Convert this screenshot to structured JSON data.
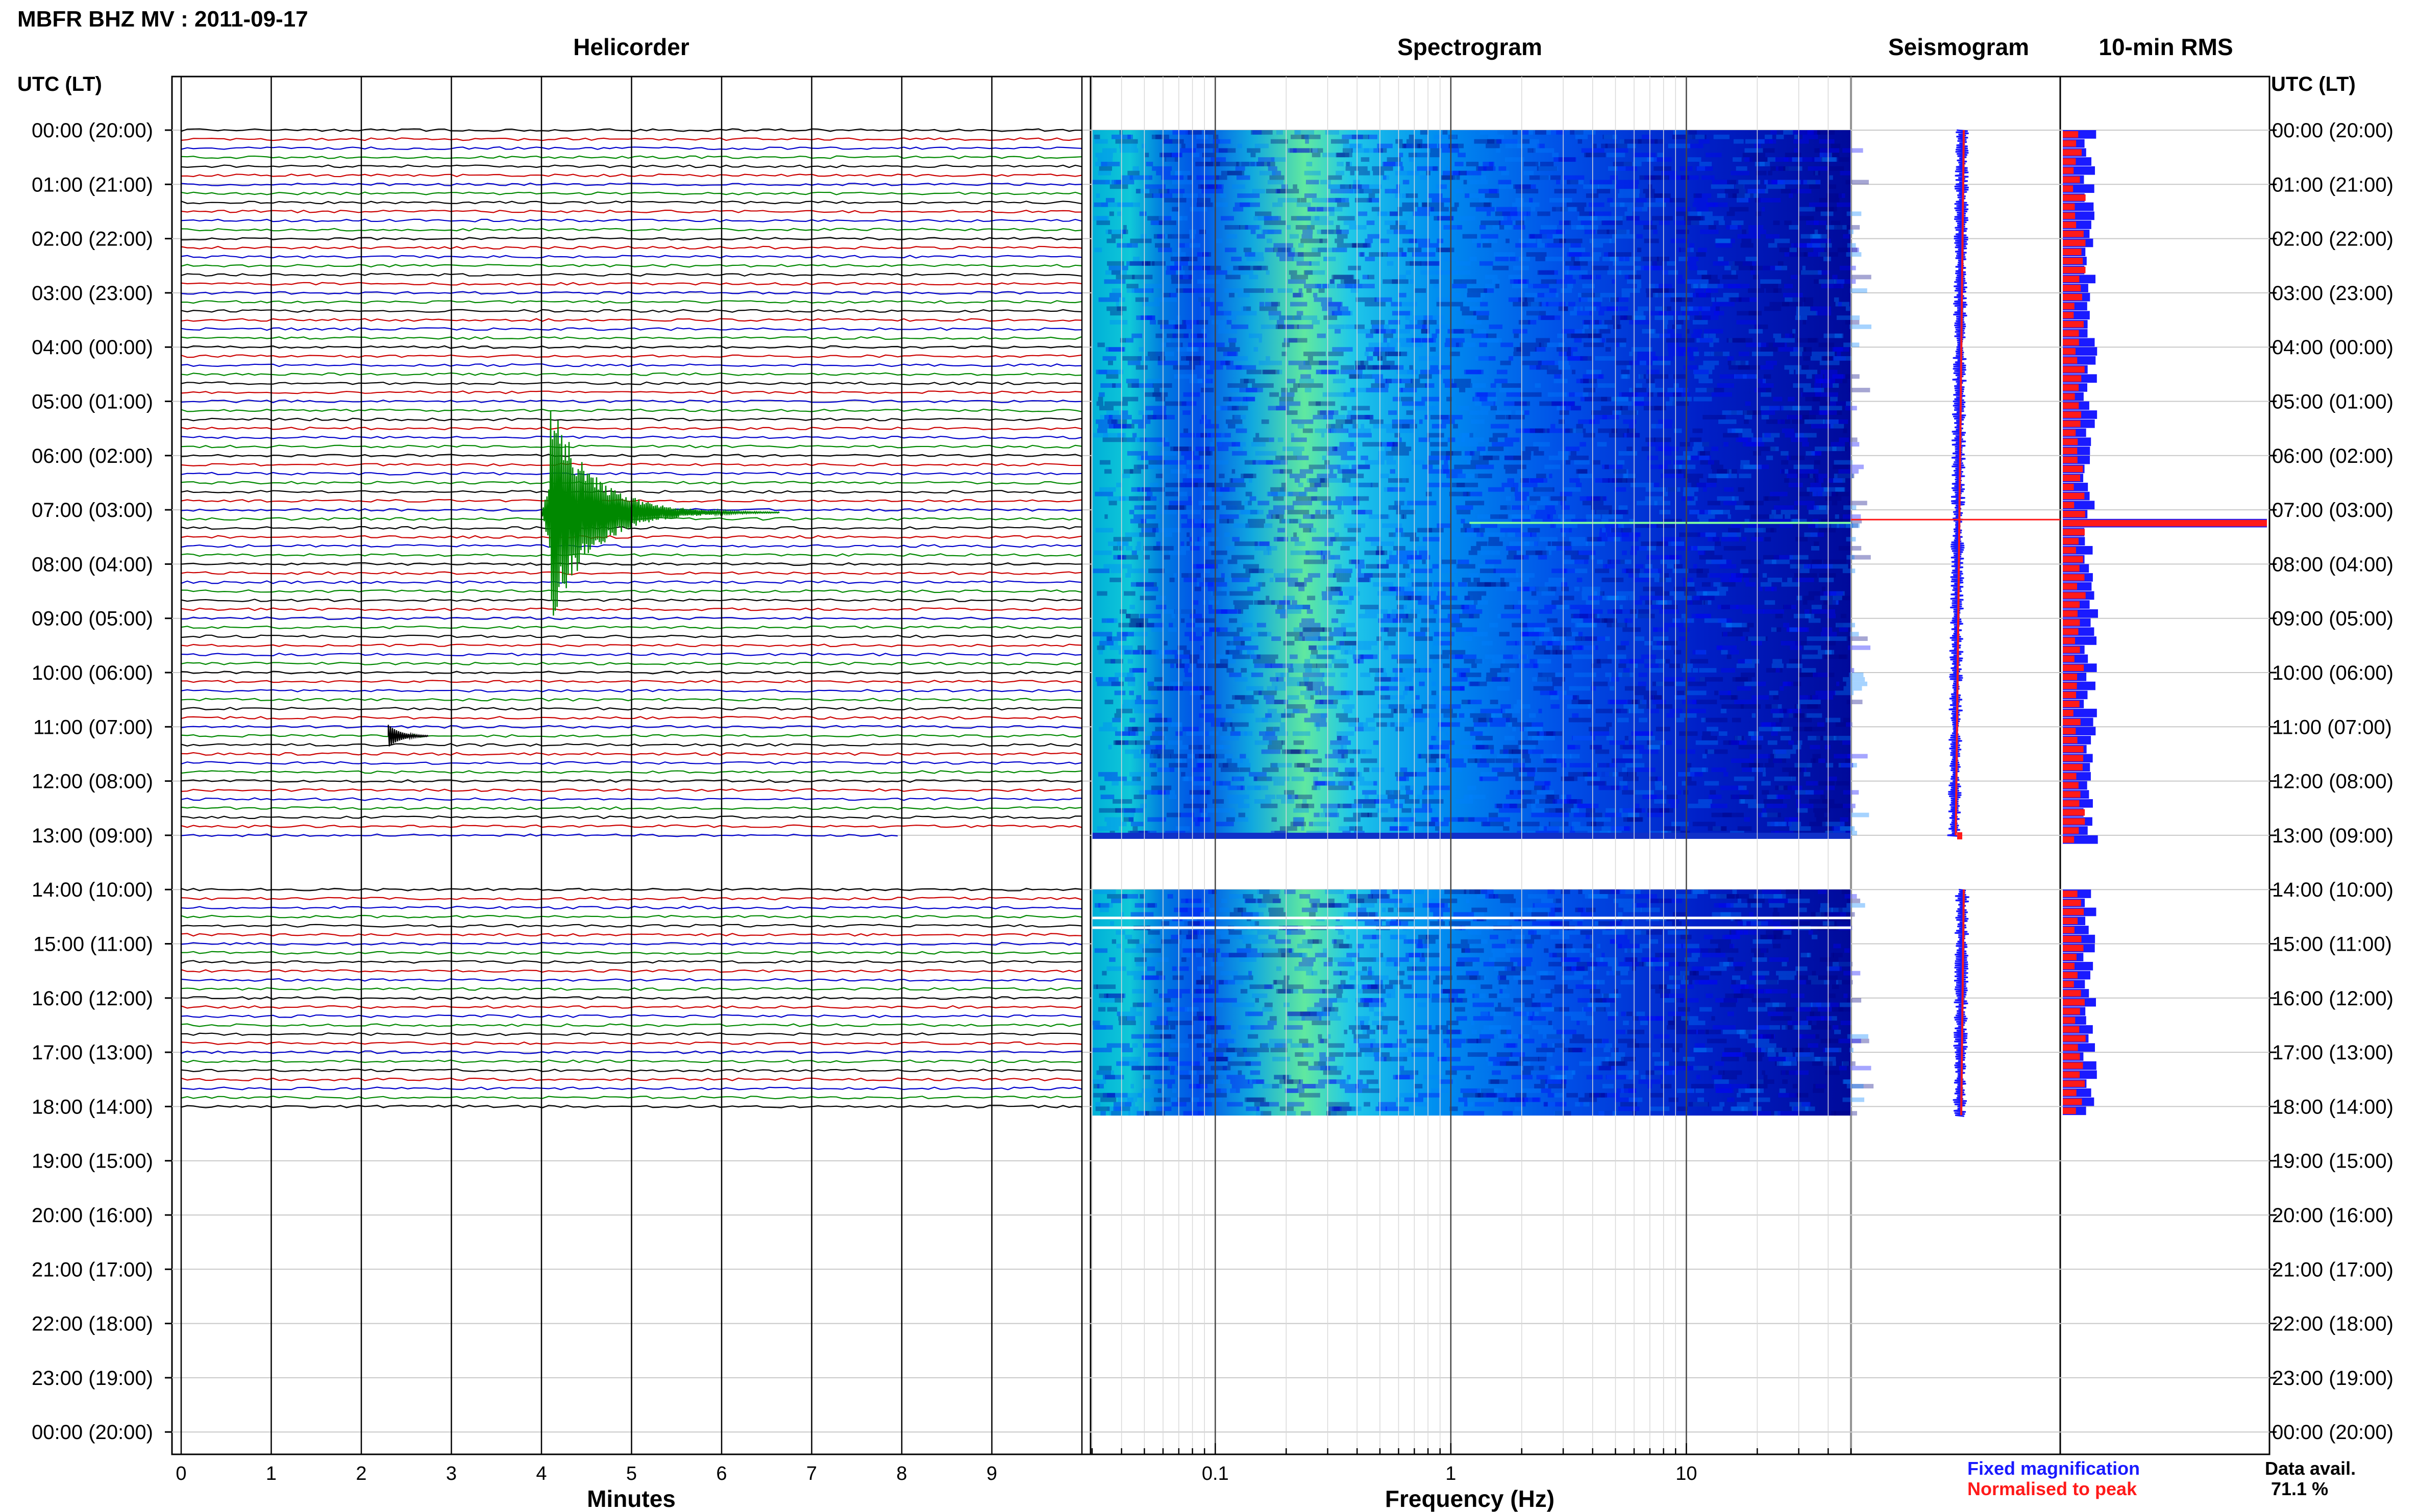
{
  "header": {
    "title": "MBFR BHZ MV : 2011-09-17",
    "utc_label_left": "UTC (LT)",
    "utc_label_right": "UTC (LT)"
  },
  "panels": {
    "helicorder": "Helicorder",
    "spectrogram": "Spectrogram",
    "seismogram": "Seismogram",
    "rms": "10-min RMS"
  },
  "time_labels": [
    "00:00 (20:00)",
    "01:00 (21:00)",
    "02:00 (22:00)",
    "03:00 (23:00)",
    "04:00 (00:00)",
    "05:00 (01:00)",
    "06:00 (02:00)",
    "07:00 (03:00)",
    "08:00 (04:00)",
    "09:00 (05:00)",
    "10:00 (06:00)",
    "11:00 (07:00)",
    "12:00 (08:00)",
    "13:00 (09:00)",
    "14:00 (10:00)",
    "15:00 (11:00)",
    "16:00 (12:00)",
    "17:00 (13:00)",
    "18:00 (14:00)",
    "19:00 (15:00)",
    "20:00 (16:00)",
    "21:00 (17:00)",
    "22:00 (18:00)",
    "23:00 (19:00)",
    "00:00 (20:00)"
  ],
  "legend": {
    "fixed": "Fixed magnification",
    "normalised": "Normalised to peak",
    "colors": {
      "fixed": "#1a1aff",
      "normalised": "#ff1a1a"
    }
  },
  "data_availability": {
    "label": "Data avail.",
    "value": "71.1 %"
  },
  "chart_data": [
    {
      "type": "line",
      "title": "Helicorder",
      "xlabel": "Minutes",
      "xlim": [
        0,
        10
      ],
      "x_ticks": [
        "0",
        "1",
        "2",
        "3",
        "4",
        "5",
        "6",
        "7",
        "8",
        "9"
      ],
      "ylim_hours_utc": [
        0,
        24
      ],
      "trace_colors": [
        "#000000",
        "#cc0000",
        "#0000cc",
        "#008800"
      ],
      "data_segments_utc": [
        [
          "00:00",
          "13:00"
        ],
        [
          "14:00",
          "18:10"
        ]
      ],
      "events": [
        {
          "time_utc": "07:04",
          "description": "large green event at ~4.1 min"
        },
        {
          "time_utc": "11:10",
          "description": "small black event at ~2.3 min"
        }
      ]
    },
    {
      "type": "heatmap",
      "title": "Spectrogram",
      "xlabel": "Frequency (Hz)",
      "x_scale": "log",
      "xlim": [
        0.03,
        50
      ],
      "x_ticks": [
        "0.1",
        "1",
        "10"
      ],
      "colormap": [
        "#000080",
        "#0000ff",
        "#0080ff",
        "#00e0e0",
        "#80ff80"
      ],
      "peak_band_hz": [
        0.2,
        0.35
      ]
    },
    {
      "type": "line",
      "title": "Seismogram",
      "series": [
        {
          "name": "Fixed magnification",
          "color": "#1a1aff"
        },
        {
          "name": "Normalised to peak",
          "color": "#ff1a1a"
        }
      ]
    },
    {
      "type": "bar",
      "title": "10-min RMS",
      "orientation": "horizontal",
      "series": [
        {
          "name": "Fixed magnification",
          "color": "#1a1aff"
        },
        {
          "name": "Normalised to peak",
          "color": "#ff1a1a"
        }
      ],
      "spike_utc": "07:10"
    }
  ]
}
